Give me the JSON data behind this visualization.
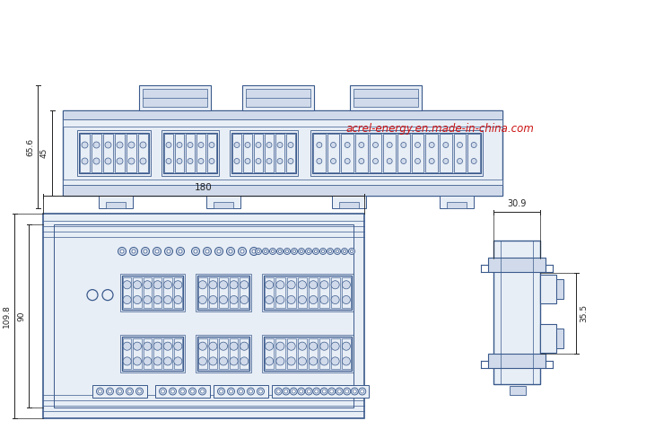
{
  "bg_color": "#ffffff",
  "line_color": "#3a5a8c",
  "fill_light": "#e8eef6",
  "fill_med": "#d0daea",
  "dim_color": "#222222",
  "red_text": "#cc1111",
  "watermark": "acrel-energy.en.made-in-china.com",
  "dim_65_6": "65.6",
  "dim_45": "45",
  "dim_180": "180",
  "dim_109_8": "109.8",
  "dim_90": "90",
  "dim_30_9": "30.9",
  "dim_35_5": "35.5"
}
